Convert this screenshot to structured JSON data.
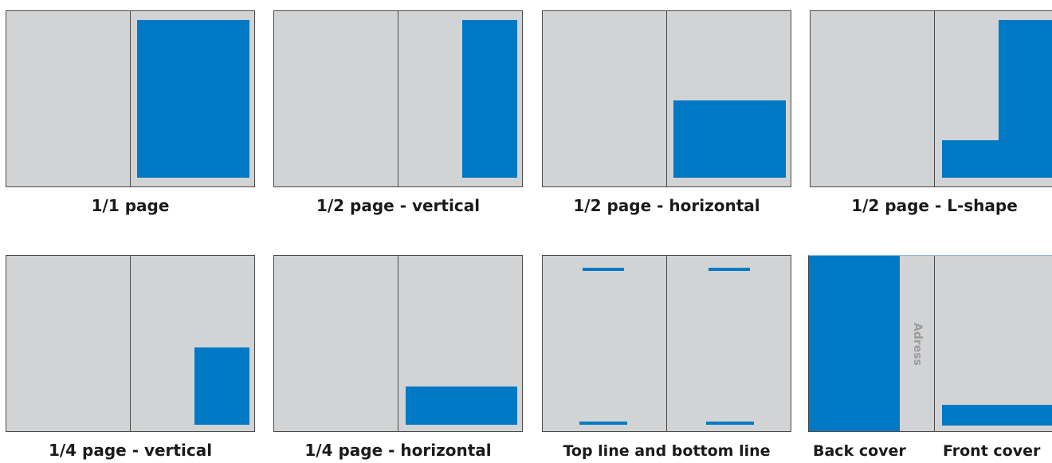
{
  "colors": {
    "page": "#d2d3d5",
    "ad": "#0079c4",
    "border": "#4a4a4a"
  },
  "labels": {
    "p1_1": "1/1 page",
    "p1_2v": "1/2 page - vertical",
    "p1_2h": "1/2 page - horizontal",
    "p1_2l": "1/2 page - L-shape",
    "p1_4v": "1/4 page - vertical",
    "p1_4h": "1/4 page - horizontal",
    "lines": "Top line and bottom line",
    "back": "Back cover",
    "front": "Front cover"
  },
  "address": "Adress"
}
